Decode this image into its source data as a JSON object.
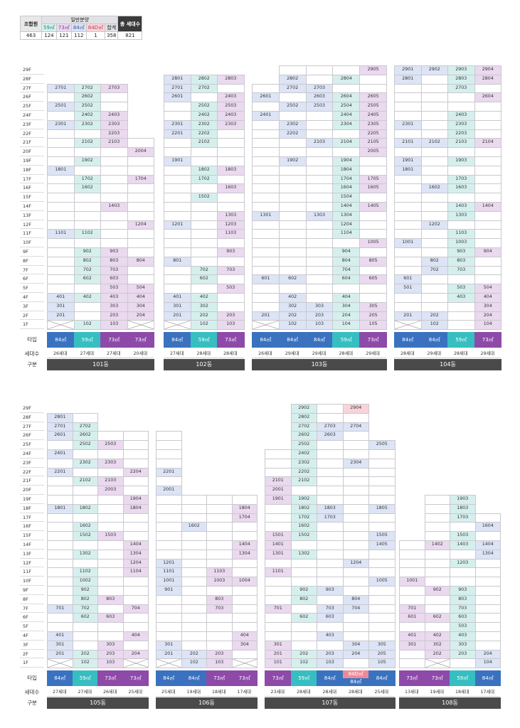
{
  "summary": {
    "union_label": "조합원",
    "general_label": "일반분양",
    "total_label": "총 세대수",
    "types": [
      "59㎡",
      "73㎡",
      "84㎡",
      "84D㎡"
    ],
    "sum_label": "합계",
    "union_value": "463",
    "type_values": [
      "124",
      "121",
      "112",
      "1"
    ],
    "sum_value": "358",
    "total_value": "821"
  },
  "row_labels": {
    "type": "타입",
    "count": "세대수",
    "name": "구분"
  },
  "floors": [
    "29F",
    "28F",
    "27F",
    "26F",
    "25F",
    "24F",
    "23F",
    "22F",
    "21F",
    "20F",
    "19F",
    "18F",
    "17F",
    "16F",
    "15F",
    "14F",
    "13F",
    "12F",
    "11F",
    "10F",
    "9F",
    "8F",
    "7F",
    "6F",
    "5F",
    "4F",
    "3F",
    "2F",
    "1F"
  ],
  "sections": [
    {
      "buildings": [
        {
          "name": "101동",
          "height": 27,
          "columns": [
            {
              "type": "84",
              "type_label": "84㎡",
              "count": "26세대",
              "pilotis": true,
              "units": {
                "27": "2701",
                "25": "2501",
                "23": "2301",
                "18": "1801",
                "11": "1101",
                "4": "401",
                "3": "301",
                "2": "201"
              }
            },
            {
              "type": "59",
              "type_label": "59㎡",
              "count": "27세대",
              "units": {
                "27": "2702",
                "26": "2602",
                "25": "2502",
                "24": "2402",
                "23": "2302",
                "21": "2102",
                "19": "1902",
                "17": "1702",
                "16": "1602",
                "11": "1102",
                "9": "902",
                "8": "802",
                "7": "702",
                "6": "602",
                "4": "402",
                "1": "102"
              }
            },
            {
              "type": "73",
              "type_label": "73㎡",
              "count": "27세대",
              "units": {
                "27": "2703",
                "24": "2403",
                "23": "2303",
                "22": "2203",
                "21": "2103",
                "14": "1403",
                "9": "903",
                "8": "803",
                "7": "703",
                "6": "603",
                "5": "503",
                "4": "403",
                "3": "303",
                "2": "203",
                "1": "103"
              }
            },
            {
              "type": "73",
              "type_label": "73㎡",
              "count": "20세대",
              "height": 21,
              "pilotis": true,
              "units": {
                "20": "2004",
                "17": "1704",
                "12": "1204",
                "8": "804",
                "5": "504",
                "4": "404",
                "3": "304",
                "2": "204"
              }
            }
          ]
        },
        {
          "name": "102동",
          "height": 28,
          "columns": [
            {
              "type": "84",
              "type_label": "84㎡",
              "count": "27세대",
              "pilotis": true,
              "units": {
                "28": "2801",
                "27": "2701",
                "26": "2601",
                "23": "2301",
                "22": "2201",
                "19": "1901",
                "12": "1201",
                "8": "801",
                "4": "401",
                "3": "301",
                "2": "201"
              }
            },
            {
              "type": "59",
              "type_label": "59㎡",
              "count": "28세대",
              "units": {
                "28": "2802",
                "27": "2702",
                "25": "2502",
                "24": "2402",
                "23": "2302",
                "22": "2202",
                "21": "2102",
                "18": "1802",
                "17": "1702",
                "15": "1502",
                "7": "702",
                "6": "602",
                "4": "402",
                "3": "302",
                "2": "202",
                "1": "102"
              }
            },
            {
              "type": "73",
              "type_label": "73㎡",
              "count": "28세대",
              "units": {
                "28": "2803",
                "26": "2403",
                "25": "2503",
                "24": "2403",
                "23": "2303",
                "18": "1803",
                "16": "1603",
                "13": "1303",
                "12": "1203",
                "11": "1103",
                "9": "903",
                "7": "703",
                "5": "503",
                "2": "203",
                "1": "103"
              }
            }
          ]
        },
        {
          "name": "103동",
          "height": 29,
          "columns": [
            {
              "type": "84",
              "type_label": "84㎡",
              "count": "26세대",
              "height": 27,
              "pilotis": true,
              "units": {
                "26": "2601",
                "24": "2401",
                "13": "1301",
                "6": "601",
                "2": "201"
              }
            },
            {
              "type": "84",
              "type_label": "84㎡",
              "count": "29세대",
              "units": {
                "28": "2802",
                "27": "2702",
                "25": "2502",
                "23": "2302",
                "22": "2202",
                "19": "1902",
                "6": "602",
                "4": "402",
                "3": "302",
                "2": "202",
                "1": "102"
              }
            },
            {
              "type": "84",
              "type_label": "84㎡",
              "count": "29세대",
              "units": {
                "27": "2703",
                "26": "2603",
                "25": "2503",
                "21": "2103",
                "13": "1303",
                "3": "303",
                "2": "203",
                "1": "103"
              }
            },
            {
              "type": "59",
              "type_label": "59㎡",
              "count": "28세대",
              "units": {
                "28": "2804",
                "26": "2604",
                "25": "2504",
                "24": "2404",
                "23": "2304",
                "21": "2104",
                "19": "1904",
                "18": "1804",
                "17": "1704",
                "16": "1604",
                "15": "1504",
                "14": "1404",
                "13": "1304",
                "12": "1204",
                "11": "1104",
                "9": "904",
                "8": "804",
                "7": "704",
                "6": "604",
                "4": "404",
                "3": "304",
                "2": "204",
                "1": "104"
              }
            },
            {
              "type": "73",
              "type_label": "73㎡",
              "count": "29세대",
              "units": {
                "29": "2905",
                "26": "2605",
                "25": "2505",
                "24": "2405",
                "23": "2305",
                "22": "2205",
                "21": "2105",
                "20": "2005",
                "17": "1705",
                "16": "1605",
                "14": "1405",
                "10": "1005",
                "8": "805",
                "6": "605",
                "3": "305",
                "2": "205",
                "1": "105"
              }
            }
          ]
        },
        {
          "name": "104동",
          "height": 29,
          "columns": [
            {
              "type": "84",
              "type_label": "84㎡",
              "count": "28세대",
              "pilotis": true,
              "units": {
                "29": "2901",
                "28": "2801",
                "23": "2301",
                "21": "2101",
                "19": "1901",
                "18": "1801",
                "10": "1001",
                "6": "601",
                "5": "501",
                "2": "201"
              }
            },
            {
              "type": "84",
              "type_label": "84㎡",
              "count": "29세대",
              "units": {
                "29": "2902",
                "21": "2102",
                "16": "1602",
                "12": "1202",
                "8": "802",
                "7": "702",
                "2": "202",
                "1": "102"
              }
            },
            {
              "type": "59",
              "type_label": "59㎡",
              "count": "28세대",
              "units": {
                "29": "2903",
                "28": "2803",
                "27": "2703",
                "24": "2403",
                "23": "2303",
                "22": "2203",
                "21": "2103",
                "19": "1903",
                "17": "1703",
                "16": "1603",
                "14": "1403",
                "13": "1303",
                "11": "1103",
                "10": "1003",
                "9": "903",
                "8": "803",
                "7": "703",
                "5": "503",
                "4": "403"
              }
            },
            {
              "type": "73",
              "type_label": "73㎡",
              "count": "29세대",
              "units": {
                "29": "2904",
                "28": "2804",
                "26": "2604",
                "21": "2104",
                "14": "1404",
                "9": "904",
                "5": "504",
                "4": "404",
                "3": "304",
                "2": "204",
                "1": "104"
              }
            }
          ]
        }
      ]
    },
    {
      "buildings": [
        {
          "name": "105동",
          "height": 28,
          "columns": [
            {
              "type": "84",
              "type_label": "84㎡",
              "count": "27세대",
              "pilotis": true,
              "units": {
                "28": "2801",
                "27": "2701",
                "26": "2601",
                "24": "2401",
                "22": "2201",
                "18": "1801",
                "7": "701",
                "4": "401",
                "3": "301",
                "2": "201"
              }
            },
            {
              "type": "59",
              "type_label": "59㎡",
              "count": "27세대",
              "units": {
                "27": "2702",
                "26": "2602",
                "25": "2502",
                "23": "2302",
                "21": "2102",
                "18": "1802",
                "16": "1602",
                "15": "1502",
                "13": "1302",
                "11": "1102",
                "10": "1002",
                "9": "902",
                "8": "802",
                "7": "702",
                "6": "602",
                "2": "202",
                "1": "102"
              }
            },
            {
              "type": "73",
              "type_label": "73㎡",
              "count": "26세대",
              "height": 26,
              "units": {
                "25": "2503",
                "23": "2303",
                "21": "2103",
                "20": "2003",
                "15": "1503",
                "8": "803",
                "6": "603",
                "3": "303",
                "2": "203",
                "1": "103"
              }
            },
            {
              "type": "73",
              "type_label": "73㎡",
              "count": "25세대",
              "height": 26,
              "pilotis": true,
              "units": {
                "22": "2204",
                "19": "1904",
                "18": "1804",
                "14": "1404",
                "13": "1304",
                "12": "1204",
                "11": "1104",
                "7": "704",
                "4": "404",
                "2": "204"
              }
            }
          ]
        },
        {
          "name": "106동",
          "height": 26,
          "columns": [
            {
              "type": "84",
              "type_label": "84㎡",
              "count": "25세대",
              "pilotis": true,
              "units": {
                "22": "2201",
                "20": "2001",
                "12": "1201",
                "11": "1101",
                "10": "1001",
                "9": "901",
                "3": "301",
                "2": "201"
              }
            },
            {
              "type": "84",
              "type_label": "84㎡",
              "count": "19세대",
              "height": 19,
              "units": {
                "16": "1602",
                "2": "202",
                "1": "102"
              }
            },
            {
              "type": "73",
              "type_label": "73㎡",
              "count": "18세대",
              "height": 19,
              "units": {
                "11": "1103",
                "10": "1003",
                "8": "803",
                "7": "703",
                "2": "203",
                "1": "103"
              }
            },
            {
              "type": "73",
              "type_label": "73㎡",
              "count": "17세대",
              "height": 19,
              "pilotis": true,
              "units": {
                "18": "1804",
                "17": "1704",
                "14": "1404",
                "13": "1304",
                "10": "1004",
                "4": "404",
                "3": "304"
              }
            }
          ]
        },
        {
          "name": "107동",
          "height": 29,
          "columns": [
            {
              "type": "73",
              "type_label": "73㎡",
              "count": "23세대",
              "height": 24,
              "units": {
                "21": "2101",
                "20": "2001",
                "19": "1901",
                "15": "1501",
                "14": "1401",
                "13": "1301",
                "11": "1101",
                "7": "701",
                "3": "301",
                "2": "201",
                "1": "101"
              }
            },
            {
              "type": "59",
              "type_label": "59㎡",
              "count": "28세대",
              "units": {
                "29": "2902",
                "28": "2802",
                "27": "2702",
                "26": "2602",
                "25": "2502",
                "24": "2402",
                "23": "2302",
                "22": "2202",
                "21": "2102",
                "19": "1902",
                "18": "1802",
                "17": "1702",
                "16": "1602",
                "15": "1502",
                "13": "1302",
                "9": "902",
                "8": "802",
                "6": "602",
                "2": "202",
                "1": "102"
              }
            },
            {
              "type": "84",
              "type_label": "84㎡",
              "count": "28세대",
              "units": {
                "27": "2703",
                "26": "2603",
                "18": "1803",
                "17": "1703",
                "9": "903",
                "7": "703",
                "6": "603",
                "4": "403",
                "2": "203",
                "1": "103"
              }
            },
            {
              "type": "84d",
              "type_label_top": "84D㎡",
              "type_label": "84㎡",
              "count": "28세대",
              "units": {
                "29": "2904",
                "27": "2704",
                "23": "2304",
                "12": "1204",
                "8": "804",
                "7": "704",
                "3": "304",
                "2": "204"
              },
              "special_units": {
                "29": "c84d",
                "1": "c84d"
              },
              "ground": "84D㎡",
              "ground_unit": "84㎡"
            },
            {
              "type": "84",
              "type_label": "84㎡",
              "count": "25세대",
              "height": 25,
              "units": {
                "25": "2505",
                "18": "1805",
                "15": "1505",
                "14": "1405",
                "10": "1005",
                "3": "305",
                "2": "205",
                "1": "105"
              }
            }
          ]
        },
        {
          "name": "108동",
          "height": 19,
          "columns": [
            {
              "type": "73",
              "type_label": "73㎡",
              "count": "13세대",
              "height": 14,
              "units": {
                "10": "1001",
                "7": "701",
                "6": "601",
                "4": "401",
                "3": "301"
              }
            },
            {
              "type": "73",
              "type_label": "73㎡",
              "count": "19세대",
              "height": 19,
              "pilotis": true,
              "units": {
                "14": "1402",
                "9": "902",
                "6": "602",
                "4": "402",
                "3": "302",
                "2": "202",
                "1": "102"
              }
            },
            {
              "type": "59",
              "type_label": "59㎡",
              "count": "18세대",
              "height": 19,
              "units": {
                "19": "1903",
                "18": "1803",
                "17": "1703",
                "15": "1503",
                "14": "1403",
                "12": "1203",
                "9": "903",
                "8": "803",
                "7": "703",
                "6": "603",
                "5": "503",
                "4": "403",
                "3": "303",
                "2": "203"
              }
            },
            {
              "type": "84",
              "type_label": "84㎡",
              "count": "17세대",
              "height": 17,
              "units": {
                "16": "1604",
                "14": "1404",
                "13": "1304",
                "2": "204",
                "1": "104"
              }
            }
          ]
        }
      ]
    }
  ]
}
